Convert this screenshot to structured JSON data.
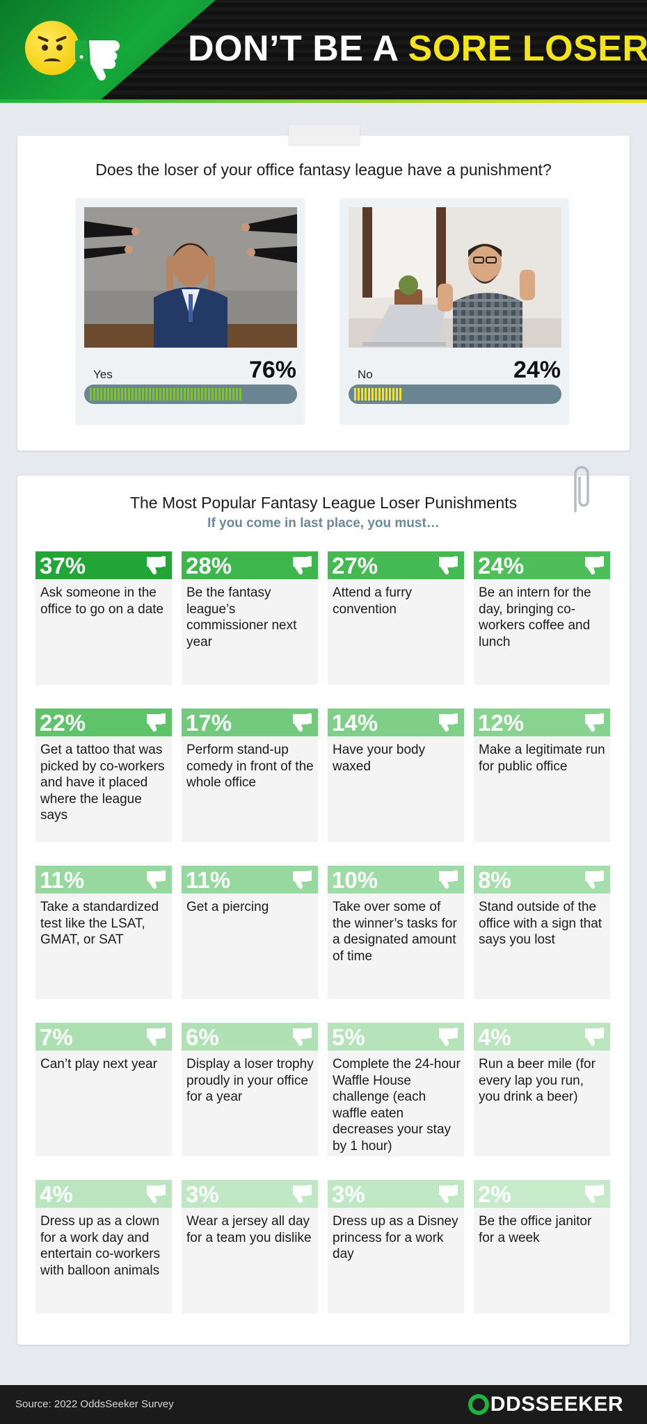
{
  "header": {
    "title_main": "DON’T BE A ",
    "title_highlight": "SORE LOSER"
  },
  "poll": {
    "question": "Does the loser of your office fantasy league have a punishment?",
    "options": [
      {
        "label": "Yes",
        "percent_text": "76%",
        "value": 0.76,
        "color": "#7ec526"
      },
      {
        "label": "No",
        "percent_text": "24%",
        "value": 0.24,
        "color": "#f1e22b"
      }
    ]
  },
  "punishments": {
    "title": "The Most Popular Fantasy League Loser Punishments",
    "subtitle": "If you come in last place, you must…"
  },
  "chart_data": [
    {
      "type": "bar",
      "title": "Does the loser of your office fantasy league have a punishment?",
      "categories": [
        "Yes",
        "No"
      ],
      "values": [
        76,
        24
      ],
      "unit": "%"
    },
    {
      "type": "table",
      "title": "The Most Popular Fantasy League Loser Punishments",
      "subtitle": "If you come in last place, you must…",
      "items": [
        {
          "percent_text": "37%",
          "value": 37,
          "text": "Ask someone in the office to go on a date",
          "color": "#23a637"
        },
        {
          "percent_text": "28%",
          "value": 28,
          "text": "Be the fantasy league’s commissioner next year",
          "color": "#3db64c"
        },
        {
          "percent_text": "27%",
          "value": 27,
          "text": "Attend a furry convention",
          "color": "#45ba52"
        },
        {
          "percent_text": "24%",
          "value": 24,
          "text": "Be an intern for the day, bringing co-workers coffee and lunch",
          "color": "#4ebe5a"
        },
        {
          "percent_text": "22%",
          "value": 22,
          "text": "Get a tattoo that was picked by co-workers and have it placed where the league says",
          "color": "#5ec369"
        },
        {
          "percent_text": "17%",
          "value": 17,
          "text": "Perform stand-up comedy in front of the whole office",
          "color": "#73ca7c"
        },
        {
          "percent_text": "14%",
          "value": 14,
          "text": "Have your body waxed",
          "color": "#7fcf88"
        },
        {
          "percent_text": "12%",
          "value": 12,
          "text": "Make a legitimate run for public office",
          "color": "#89d391"
        },
        {
          "percent_text": "11%",
          "value": 11,
          "text": "Take a standardized test like the LSAT, GMAT, or SAT",
          "color": "#96d89d"
        },
        {
          "percent_text": "11%",
          "value": 11,
          "text": "Get a piercing",
          "color": "#96d89d"
        },
        {
          "percent_text": "10%",
          "value": 10,
          "text": "Take over some of the winner’s tasks for a designated amount of time",
          "color": "#9edba5"
        },
        {
          "percent_text": "8%",
          "value": 8,
          "text": "Stand outside of the office with a sign that says you lost",
          "color": "#a6deac"
        },
        {
          "percent_text": "7%",
          "value": 7,
          "text": "Can’t play next year",
          "color": "#acdfb1"
        },
        {
          "percent_text": "6%",
          "value": 6,
          "text": "Display a loser trophy proudly in your office for a year",
          "color": "#b0e1b5"
        },
        {
          "percent_text": "5%",
          "value": 5,
          "text": "Complete the 24-hour Waffle House challenge (each waffle eaten decreases your stay by 1 hour)",
          "color": "#b6e3ba"
        },
        {
          "percent_text": "4%",
          "value": 4,
          "text": "Run a beer mile (for every lap you run, you drink a beer)",
          "color": "#bbe5bf"
        },
        {
          "percent_text": "4%",
          "value": 4,
          "text": "Dress up as a clown for a work day and entertain co-workers with balloon animals",
          "color": "#bbe5bf"
        },
        {
          "percent_text": "3%",
          "value": 3,
          "text": "Wear a jersey all day for a team you dislike",
          "color": "#c0e8c4"
        },
        {
          "percent_text": "3%",
          "value": 3,
          "text": "Dress up as a Disney princess for a work day",
          "color": "#c0e8c4"
        },
        {
          "percent_text": "2%",
          "value": 2,
          "text": "Be the office janitor for a week",
          "color": "#c7eaca"
        }
      ]
    }
  ],
  "footer": {
    "source": "Source: 2022 OddsSeeker Survey",
    "brand": "DDSSEEKER"
  },
  "icons": {
    "emoji": "angry-face-icon",
    "header_hand": "thumbs-down-icon",
    "tile_icon": "thumbs-down-icon",
    "clip": "paperclip-icon"
  }
}
